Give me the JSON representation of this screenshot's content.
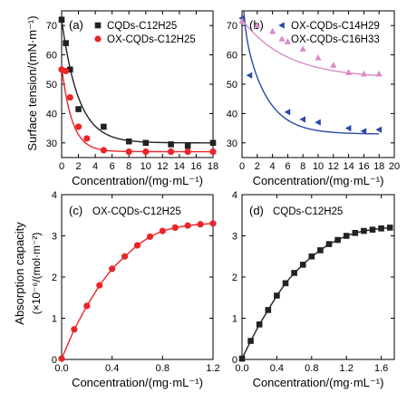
{
  "ylabel_top": "Surface tension/(mN·m⁻¹)",
  "ylabel_bottom_line1": "Absorption capacity",
  "ylabel_bottom_line2": "(×10⁻⁶/(mol·m⁻²)",
  "colors": {
    "black": "#222222",
    "red": "#e8262a",
    "blue": "#2b4aa6",
    "pink": "#d98cc6"
  },
  "chart_data": [
    {
      "id": "a",
      "type": "scatter",
      "panel_label": "(a)",
      "xlabel": "Concentration/(mg·mL⁻¹)",
      "xlim": [
        0,
        18
      ],
      "ylim": [
        25,
        75
      ],
      "xticks": [
        0,
        2,
        4,
        6,
        8,
        10,
        12,
        14,
        16,
        18
      ],
      "yticks": [
        30,
        40,
        50,
        60,
        70
      ],
      "legend_position": "top-right",
      "series": [
        {
          "name": "CQDs-C12H25",
          "marker": "square",
          "color": "#222222",
          "x": [
            0,
            0.5,
            1,
            2,
            5,
            8,
            10,
            13,
            15,
            18
          ],
          "y": [
            72,
            64,
            55,
            41.5,
            35.5,
            30.5,
            30,
            29.5,
            29,
            30
          ],
          "fit": {
            "c": 30,
            "a": 42,
            "k": 0.5
          }
        },
        {
          "name": "OX-CQDs-C12H25",
          "marker": "circle",
          "color": "#e8262a",
          "x": [
            0,
            0.5,
            1,
            2,
            3,
            5,
            8,
            10,
            13,
            15,
            18
          ],
          "y": [
            55,
            54.5,
            45.5,
            35.5,
            31.5,
            27.5,
            27,
            27,
            27,
            27,
            27
          ],
          "fit": {
            "c": 27,
            "a": 29,
            "k": 0.8
          }
        }
      ]
    },
    {
      "id": "b",
      "type": "scatter",
      "panel_label": "(b)",
      "xlabel": "Concentration/(mg·mL⁻¹)",
      "xlim": [
        0,
        20
      ],
      "ylim": [
        25,
        75
      ],
      "xticks": [
        0,
        2,
        4,
        6,
        8,
        10,
        12,
        14,
        16,
        18,
        20
      ],
      "yticks": [
        30,
        40,
        50,
        60,
        70
      ],
      "legend_position": "top-right",
      "series": [
        {
          "name": "OX-CQDs-C14H29",
          "marker": "triangle-left",
          "color": "#2b4aa6",
          "x": [
            0,
            1,
            6,
            8,
            10,
            14,
            16,
            18
          ],
          "y": [
            72.5,
            53,
            40.5,
            38,
            37,
            35,
            34,
            34.5
          ],
          "fit": {
            "c": 33,
            "a": 39,
            "k": 0.35,
            "b": 14,
            "k2": 3.5
          }
        },
        {
          "name": "OX-CQDs-C16H33",
          "marker": "triangle-up",
          "color": "#d98cc6",
          "x": [
            0,
            2,
            4,
            6,
            8,
            10,
            12,
            14,
            16,
            18
          ],
          "y": [
            71.5,
            70,
            68,
            64.5,
            62,
            59,
            56.5,
            54,
            53.5,
            53.5
          ],
          "fit": {
            "c": 52,
            "a": 20,
            "k": 0.17
          }
        }
      ]
    },
    {
      "id": "c",
      "type": "line",
      "panel_label": "(c)",
      "title": "OX-CQDs-C12H25",
      "xlabel": "Concentration/(mg·mL⁻¹)",
      "xlim": [
        0,
        1.2
      ],
      "ylim": [
        0,
        4
      ],
      "xticks": [
        0,
        0.4,
        0.8,
        1.2
      ],
      "xtick_labels": [
        "0.0",
        "0.4",
        "0.8",
        "1.2"
      ],
      "yticks": [
        0,
        1,
        2,
        3,
        4
      ],
      "series": [
        {
          "name": "",
          "marker": "circle",
          "color": "#e8262a",
          "x": [
            0,
            0.1,
            0.2,
            0.3,
            0.4,
            0.5,
            0.6,
            0.7,
            0.8,
            0.9,
            1.0,
            1.1,
            1.2
          ],
          "y": [
            0.02,
            0.73,
            1.3,
            1.8,
            2.2,
            2.5,
            2.77,
            2.98,
            3.12,
            3.2,
            3.25,
            3.28,
            3.3
          ]
        }
      ]
    },
    {
      "id": "d",
      "type": "line",
      "panel_label": "(d)",
      "title": "CQDs-C12H25",
      "xlabel": "Concentration/(mg·mL⁻¹)",
      "xlim": [
        0,
        1.75
      ],
      "ylim": [
        0,
        4
      ],
      "xticks": [
        0,
        0.4,
        0.8,
        1.2,
        1.6
      ],
      "xtick_labels": [
        "0.0",
        "0.4",
        "0.8",
        "1.2",
        "1.6"
      ],
      "yticks": [
        0,
        1,
        2,
        3,
        4
      ],
      "series": [
        {
          "name": "",
          "marker": "square",
          "color": "#222222",
          "x": [
            0,
            0.1,
            0.2,
            0.3,
            0.4,
            0.5,
            0.6,
            0.7,
            0.8,
            0.9,
            1.0,
            1.1,
            1.2,
            1.3,
            1.4,
            1.5,
            1.6,
            1.7
          ],
          "y": [
            0.02,
            0.45,
            0.85,
            1.2,
            1.55,
            1.85,
            2.1,
            2.3,
            2.5,
            2.65,
            2.8,
            2.9,
            3.0,
            3.07,
            3.12,
            3.15,
            3.18,
            3.2
          ]
        }
      ]
    }
  ]
}
